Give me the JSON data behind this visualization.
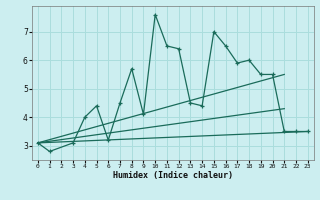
{
  "title": "",
  "xlabel": "Humidex (Indice chaleur)",
  "bg_color": "#cceef0",
  "grid_color": "#aadddd",
  "line_color": "#1a6b5a",
  "xlim": [
    -0.5,
    23.5
  ],
  "ylim": [
    2.5,
    7.9
  ],
  "xticks": [
    0,
    1,
    2,
    3,
    4,
    5,
    6,
    7,
    8,
    9,
    10,
    11,
    12,
    13,
    14,
    15,
    16,
    17,
    18,
    19,
    20,
    21,
    22,
    23
  ],
  "yticks": [
    3,
    4,
    5,
    6,
    7
  ],
  "series": [
    {
      "x": [
        0,
        1,
        3,
        4,
        5,
        6,
        7,
        8,
        9,
        10,
        11,
        12,
        13,
        14,
        15,
        16,
        17,
        18,
        19,
        20,
        21,
        22,
        23
      ],
      "y": [
        3.1,
        2.8,
        3.1,
        4.0,
        4.4,
        3.2,
        4.5,
        5.7,
        4.1,
        7.6,
        6.5,
        6.4,
        4.5,
        4.4,
        7.0,
        6.5,
        5.9,
        6.0,
        5.5,
        5.5,
        3.5,
        3.5,
        3.5
      ],
      "marker": true
    },
    {
      "x": [
        0,
        21
      ],
      "y": [
        3.1,
        5.5
      ],
      "marker": false
    },
    {
      "x": [
        0,
        23
      ],
      "y": [
        3.1,
        3.5
      ],
      "marker": false
    },
    {
      "x": [
        0,
        21
      ],
      "y": [
        3.1,
        4.3
      ],
      "marker": false
    }
  ]
}
